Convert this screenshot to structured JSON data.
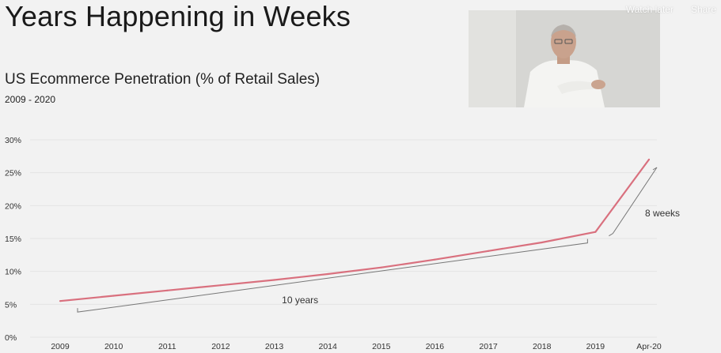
{
  "slide": {
    "title": "Years Happening in Weeks"
  },
  "video_overlay": {
    "watch_later_label": "Watch later",
    "share_label": "Share"
  },
  "webcam": {
    "icon": "presenter-webcam-icon"
  },
  "chart_data": {
    "type": "line",
    "title": "US Ecommerce Penetration (% of Retail Sales)",
    "subtitle": "2009 - 2020",
    "xlabel": "",
    "ylabel": "",
    "categories": [
      "2009",
      "2010",
      "2011",
      "2012",
      "2013",
      "2014",
      "2015",
      "2016",
      "2017",
      "2018",
      "2019",
      "Apr-20"
    ],
    "series": [
      {
        "color": "#d9707e",
        "values": [
          5.5,
          6.3,
          7.1,
          7.9,
          8.7,
          9.6,
          10.6,
          11.8,
          13.1,
          14.4,
          16.0,
          27.0
        ]
      }
    ],
    "ylim": [
      0,
      30
    ],
    "yticks": [
      0,
      5,
      10,
      15,
      20,
      25,
      30
    ],
    "ytick_labels": [
      "0%",
      "5%",
      "10%",
      "15%",
      "20%",
      "25%",
      "30%"
    ],
    "grid": true,
    "legend": "none",
    "annotations": [
      {
        "text": "10 years",
        "from_category": "2009",
        "to_category": "2019"
      },
      {
        "text": "8 weeks",
        "from_category": "2019",
        "to_category": "Apr-20"
      }
    ]
  }
}
